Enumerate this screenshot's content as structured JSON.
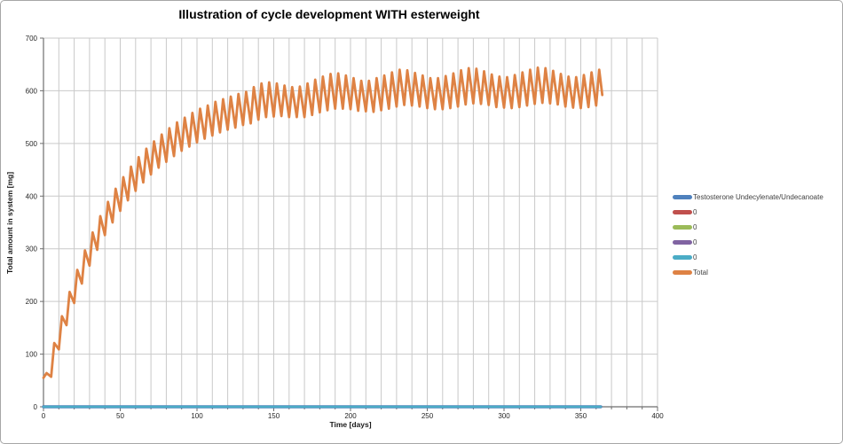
{
  "chart_data": {
    "type": "line",
    "title": "Illustration of cycle development WITH esterweight",
    "xlabel": "Time [days]",
    "ylabel": "Total amount in system [mg]",
    "xlim": [
      0,
      400
    ],
    "ylim": [
      0,
      700
    ],
    "x_ticks": [
      0,
      50,
      100,
      150,
      200,
      250,
      300,
      350,
      400
    ],
    "y_ticks": [
      0,
      100,
      200,
      300,
      400,
      500,
      600,
      700
    ],
    "x_minor_grid_step": 10,
    "y_major_grid_step": 100,
    "grid": "on",
    "legend_position": "right",
    "colors": {
      "grid": "#C9C9C9",
      "axis": "#6E6E6E",
      "tick_label": "#262626",
      "legend_text": "#3F3F3F",
      "background": "#FFFFFF"
    },
    "series": [
      {
        "name": "Testosterone Undecylenate/Undecanoate",
        "color": "#4F81BD",
        "width": 3.4,
        "points": [
          [
            0,
            0
          ],
          [
            363,
            0
          ]
        ]
      },
      {
        "name": "0",
        "color": "#C0504D",
        "width": 2,
        "points": [
          [
            0,
            0
          ],
          [
            363,
            0
          ]
        ]
      },
      {
        "name": "0",
        "color": "#9BBB59",
        "width": 2,
        "points": [
          [
            0,
            0
          ],
          [
            363,
            0
          ]
        ]
      },
      {
        "name": "0",
        "color": "#8064A2",
        "width": 2,
        "points": [
          [
            0,
            0
          ],
          [
            363,
            0
          ]
        ]
      },
      {
        "name": "0",
        "color": "#4BACC6",
        "width": 2.2,
        "points": [
          [
            0,
            0
          ],
          [
            363,
            0
          ]
        ]
      },
      {
        "name": "Total",
        "color": "#DE8244",
        "width": 2.8,
        "points": [
          [
            0,
            55
          ],
          [
            2,
            64
          ],
          [
            5,
            57
          ],
          [
            7,
            121
          ],
          [
            10,
            109
          ],
          [
            12,
            172
          ],
          [
            15,
            155
          ],
          [
            17,
            218
          ],
          [
            20,
            197
          ],
          [
            22,
            260
          ],
          [
            25,
            234
          ],
          [
            27,
            297
          ],
          [
            30,
            268
          ],
          [
            32,
            331
          ],
          [
            35,
            298
          ],
          [
            37,
            362
          ],
          [
            40,
            326
          ],
          [
            42,
            389
          ],
          [
            45,
            350
          ],
          [
            47,
            414
          ],
          [
            50,
            372
          ],
          [
            52,
            436
          ],
          [
            55,
            392
          ],
          [
            57,
            456
          ],
          [
            60,
            410
          ],
          [
            62,
            474
          ],
          [
            65,
            426
          ],
          [
            67,
            490
          ],
          [
            70,
            441
          ],
          [
            72,
            504
          ],
          [
            75,
            454
          ],
          [
            77,
            517
          ],
          [
            80,
            465
          ],
          [
            82,
            529
          ],
          [
            85,
            476
          ],
          [
            87,
            540
          ],
          [
            90,
            486
          ],
          [
            92,
            549
          ],
          [
            95,
            494
          ],
          [
            97,
            558
          ],
          [
            100,
            502
          ],
          [
            102,
            566
          ],
          [
            105,
            509
          ],
          [
            107,
            572
          ],
          [
            110,
            515
          ],
          [
            112,
            579
          ],
          [
            115,
            521
          ],
          [
            117,
            584
          ],
          [
            120,
            526
          ],
          [
            122,
            589
          ],
          [
            125,
            530
          ],
          [
            127,
            594
          ],
          [
            130,
            535
          ],
          [
            132,
            598
          ],
          [
            135,
            538
          ],
          [
            137,
            607
          ],
          [
            140,
            545
          ],
          [
            142,
            614
          ],
          [
            145,
            550
          ],
          [
            147,
            616
          ],
          [
            150,
            551
          ],
          [
            152,
            614
          ],
          [
            155,
            552
          ],
          [
            157,
            610
          ],
          [
            160,
            550
          ],
          [
            162,
            607
          ],
          [
            165,
            550
          ],
          [
            167,
            608
          ],
          [
            170,
            550
          ],
          [
            172,
            614
          ],
          [
            175,
            554
          ],
          [
            177,
            621
          ],
          [
            180,
            559
          ],
          [
            182,
            627
          ],
          [
            185,
            563
          ],
          [
            187,
            632
          ],
          [
            190,
            566
          ],
          [
            192,
            633
          ],
          [
            195,
            566
          ],
          [
            197,
            629
          ],
          [
            200,
            565
          ],
          [
            202,
            624
          ],
          [
            205,
            562
          ],
          [
            207,
            619
          ],
          [
            210,
            561
          ],
          [
            212,
            619
          ],
          [
            215,
            560
          ],
          [
            217,
            624
          ],
          [
            220,
            563
          ],
          [
            222,
            629
          ],
          [
            225,
            566
          ],
          [
            227,
            635
          ],
          [
            230,
            570
          ],
          [
            232,
            640
          ],
          [
            235,
            573
          ],
          [
            237,
            639
          ],
          [
            240,
            572
          ],
          [
            242,
            634
          ],
          [
            245,
            570
          ],
          [
            247,
            629
          ],
          [
            250,
            567
          ],
          [
            252,
            624
          ],
          [
            255,
            565
          ],
          [
            257,
            624
          ],
          [
            260,
            565
          ],
          [
            262,
            628
          ],
          [
            265,
            567
          ],
          [
            267,
            633
          ],
          [
            270,
            570
          ],
          [
            272,
            639
          ],
          [
            275,
            574
          ],
          [
            277,
            643
          ],
          [
            280,
            576
          ],
          [
            282,
            642
          ],
          [
            285,
            575
          ],
          [
            287,
            637
          ],
          [
            290,
            573
          ],
          [
            292,
            631
          ],
          [
            295,
            569
          ],
          [
            297,
            627
          ],
          [
            300,
            568
          ],
          [
            302,
            626
          ],
          [
            305,
            567
          ],
          [
            307,
            630
          ],
          [
            310,
            569
          ],
          [
            312,
            635
          ],
          [
            315,
            572
          ],
          [
            317,
            640
          ],
          [
            320,
            575
          ],
          [
            322,
            644
          ],
          [
            325,
            577
          ],
          [
            327,
            643
          ],
          [
            330,
            576
          ],
          [
            332,
            638
          ],
          [
            335,
            574
          ],
          [
            337,
            632
          ],
          [
            340,
            570
          ],
          [
            342,
            627
          ],
          [
            345,
            568
          ],
          [
            347,
            626
          ],
          [
            350,
            567
          ],
          [
            352,
            630
          ],
          [
            355,
            569
          ],
          [
            357,
            635
          ],
          [
            360,
            572
          ],
          [
            362,
            640
          ],
          [
            364,
            592
          ]
        ]
      }
    ]
  }
}
